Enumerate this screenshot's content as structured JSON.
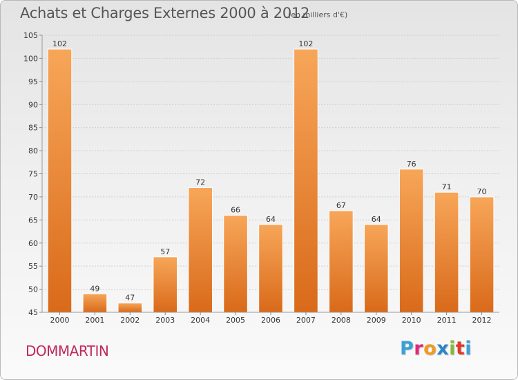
{
  "header": {
    "title": "Achats et Charges Externes 2000 à 2012",
    "unit": "(en milliers d'€)"
  },
  "footer": {
    "commune": "DOMMARTIN",
    "logo_letters": [
      "P",
      "r",
      "o",
      "x",
      "i",
      "t",
      "i"
    ],
    "logo_colors": [
      "#3aa0d8",
      "#e0287a",
      "#f29a1e",
      "#2a86c8",
      "#86b83a",
      "#e03a2a",
      "#3aa0d8"
    ]
  },
  "colors": {
    "bar_light": "#f7a659",
    "bar_dark": "#d96a1a",
    "grid": "#cfcfcf",
    "text": "#333333",
    "commune": "#c0285a"
  },
  "chart_data": {
    "type": "bar",
    "categories": [
      "2000",
      "2001",
      "2002",
      "2003",
      "2004",
      "2005",
      "2006",
      "2007",
      "2008",
      "2009",
      "2010",
      "2011",
      "2012"
    ],
    "values": [
      102,
      49,
      47,
      57,
      72,
      66,
      64,
      102,
      67,
      64,
      76,
      71,
      70
    ],
    "ylim": [
      45,
      105
    ],
    "yticks": [
      45,
      50,
      55,
      60,
      65,
      70,
      75,
      80,
      85,
      90,
      95,
      100,
      105
    ],
    "grid": true
  }
}
